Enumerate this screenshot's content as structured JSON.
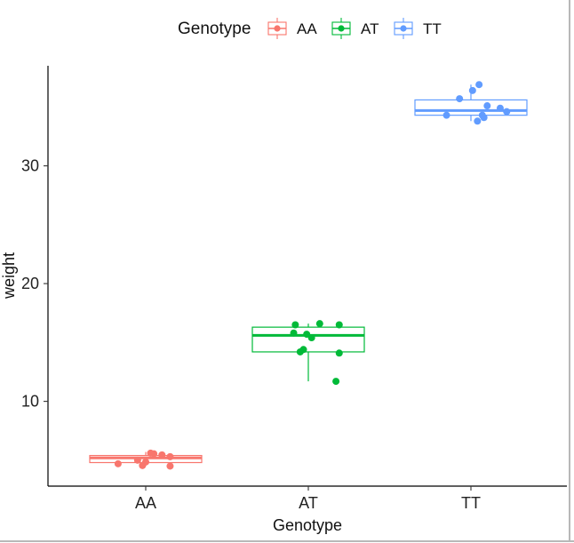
{
  "chart_data": {
    "type": "box",
    "xlabel": "Genotype",
    "ylabel": "weight",
    "categories": [
      "AA",
      "AT",
      "TT"
    ],
    "ylim": [
      2.8,
      38.5
    ],
    "yticks": [
      10,
      20,
      30
    ],
    "grid": false,
    "legend": {
      "title": "Genotype",
      "position": "top",
      "entries": [
        "AA",
        "AT",
        "TT"
      ]
    },
    "colors": {
      "AA": "#F8766D",
      "AT": "#00BA38",
      "TT": "#619CFF"
    },
    "series": [
      {
        "name": "AA",
        "box": {
          "q1": 4.8,
          "median": 5.2,
          "q3": 5.4,
          "whisker_low": 4.5,
          "whisker_high": 5.7
        },
        "points": [
          {
            "x": -0.17,
            "y": 4.7
          },
          {
            "x": -0.05,
            "y": 5.0
          },
          {
            "x": -0.02,
            "y": 4.55
          },
          {
            "x": 0.0,
            "y": 4.85
          },
          {
            "x": 0.03,
            "y": 5.6
          },
          {
            "x": 0.05,
            "y": 5.55
          },
          {
            "x": 0.1,
            "y": 5.45
          },
          {
            "x": 0.15,
            "y": 5.3
          },
          {
            "x": 0.15,
            "y": 4.5
          }
        ]
      },
      {
        "name": "AT",
        "box": {
          "q1": 14.2,
          "median": 15.6,
          "q3": 16.3,
          "whisker_low": 11.7,
          "whisker_high": 16.6
        },
        "points": [
          {
            "x": -0.09,
            "y": 15.8
          },
          {
            "x": -0.08,
            "y": 16.5
          },
          {
            "x": -0.05,
            "y": 14.2
          },
          {
            "x": -0.03,
            "y": 14.4
          },
          {
            "x": -0.01,
            "y": 15.7
          },
          {
            "x": 0.02,
            "y": 15.4
          },
          {
            "x": 0.07,
            "y": 16.6
          },
          {
            "x": 0.19,
            "y": 16.5
          },
          {
            "x": 0.19,
            "y": 14.1
          },
          {
            "x": 0.17,
            "y": 11.7
          }
        ]
      },
      {
        "name": "TT",
        "box": {
          "q1": 34.3,
          "median": 34.7,
          "q3": 35.6,
          "whisker_low": 33.8,
          "whisker_high": 36.9
        },
        "points": [
          {
            "x": -0.15,
            "y": 34.3
          },
          {
            "x": -0.07,
            "y": 35.7
          },
          {
            "x": 0.01,
            "y": 36.4
          },
          {
            "x": 0.05,
            "y": 36.9
          },
          {
            "x": 0.07,
            "y": 34.3
          },
          {
            "x": 0.04,
            "y": 33.8
          },
          {
            "x": 0.08,
            "y": 34.1
          },
          {
            "x": 0.1,
            "y": 35.1
          },
          {
            "x": 0.18,
            "y": 34.9
          },
          {
            "x": 0.22,
            "y": 34.6
          }
        ]
      }
    ]
  }
}
